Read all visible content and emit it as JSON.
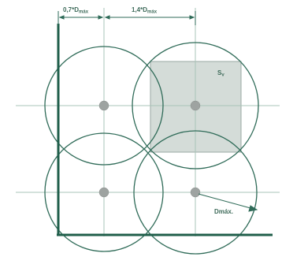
{
  "dimensions": {
    "left": {
      "main": "0,7*D",
      "sub": "máx"
    },
    "right": {
      "main": "1,4*D",
      "sub": "máx"
    }
  },
  "labels": {
    "area": {
      "main": "S",
      "sub": "v"
    },
    "radius": "Dmáx."
  },
  "colors": {
    "stroke": "#2f6b58",
    "axis": "#1f5e4a",
    "grid": "#a9c4b8",
    "square_fill": "#d4dcd8",
    "square_stroke": "#9aa9a3",
    "node": "#9ea3a1"
  }
}
